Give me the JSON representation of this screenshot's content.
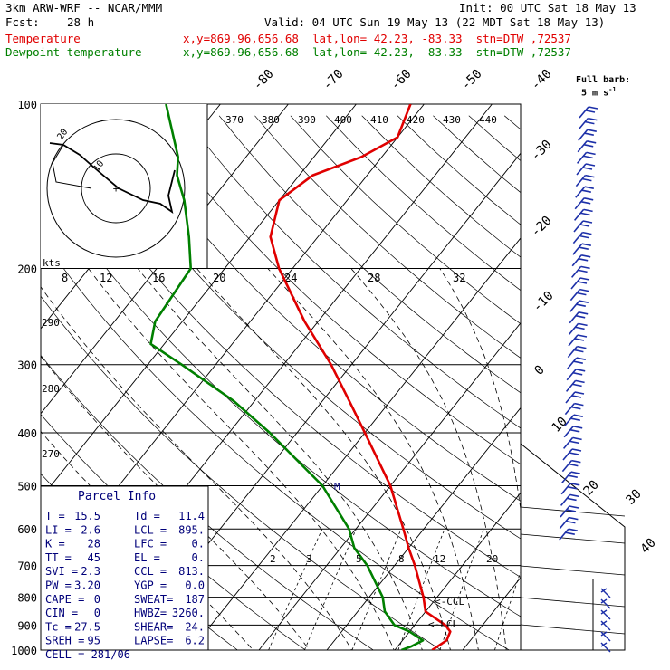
{
  "header": {
    "model": "3km ARW-WRF -- NCAR/MMM",
    "init": "Init: 00 UTC Sat 18 May 13",
    "fcst_label": "Fcst:",
    "fcst_value": "28 h",
    "valid": "Valid: 04 UTC Sun 19 May 13 (22 MDT Sat 18 May 13)",
    "temp_label": "Temperature",
    "temp_info": "x,y=869.96,656.68  lat,lon= 42.23, -83.33  stn=DTW ,72537",
    "dew_label": "Dewpoint temperature",
    "dew_info": "x,y=869.96,656.68  lat,lon= 42.23, -83.33  stn=DTW ,72537",
    "barb_title": "Full barb:",
    "barb_unit": "5 m s",
    "barb_exp": "-1"
  },
  "colors": {
    "temperature": "#e00000",
    "dewpoint": "#008000",
    "barbs": "#1c2fa8",
    "panel": "#00007a"
  },
  "chart_data": {
    "type": "line",
    "title": "",
    "xlabel": "",
    "ylabel": "",
    "pressure_levels": [
      100,
      200,
      300,
      400,
      500,
      600,
      700,
      800,
      900,
      1000
    ],
    "isotherm_labels": [
      -80,
      -70,
      -60,
      -50,
      -40,
      -30,
      -20,
      -10,
      0,
      10,
      20,
      30,
      40
    ],
    "theta_labels": [
      370,
      380,
      390,
      400,
      410,
      420,
      430,
      440
    ],
    "theta_side_labels": [
      290,
      280,
      270
    ],
    "mixing_ratio_labels": [
      2,
      3,
      5,
      8,
      12,
      20
    ],
    "hodo_speed_labels": [
      8,
      12,
      16,
      20,
      24,
      28,
      32
    ],
    "hodo_ring_labels": [
      20,
      10
    ],
    "hodo_units": "kts",
    "series": [
      {
        "name": "Temperature",
        "points": [
          [
            1000,
            15.5
          ],
          [
            980,
            16
          ],
          [
            960,
            16.5
          ],
          [
            925,
            16
          ],
          [
            900,
            14.5
          ],
          [
            850,
            10
          ],
          [
            800,
            8
          ],
          [
            700,
            3
          ],
          [
            650,
            0
          ],
          [
            600,
            -3
          ],
          [
            500,
            -10
          ],
          [
            400,
            -20
          ],
          [
            350,
            -26
          ],
          [
            300,
            -33
          ],
          [
            250,
            -42
          ],
          [
            200,
            -52
          ],
          [
            175,
            -57
          ],
          [
            150,
            -60
          ],
          [
            135,
            -58
          ],
          [
            125,
            -53
          ],
          [
            115,
            -50
          ],
          [
            100,
            -52
          ]
        ]
      },
      {
        "name": "Dewpoint temperature",
        "points": [
          [
            1000,
            11
          ],
          [
            985,
            12
          ],
          [
            960,
            13
          ],
          [
            925,
            10
          ],
          [
            900,
            7
          ],
          [
            850,
            4
          ],
          [
            800,
            2
          ],
          [
            700,
            -4
          ],
          [
            650,
            -8
          ],
          [
            600,
            -11
          ],
          [
            500,
            -20
          ],
          [
            400,
            -34
          ],
          [
            350,
            -43
          ],
          [
            300,
            -55
          ],
          [
            275,
            -62
          ],
          [
            250,
            -64
          ],
          [
            200,
            -65
          ],
          [
            175,
            -69
          ],
          [
            150,
            -74
          ],
          [
            135,
            -78
          ],
          [
            125,
            -80
          ],
          [
            100,
            -88
          ]
        ]
      }
    ],
    "parcel_info": [
      [
        "T  =",
        "15.5",
        "Td =",
        "11.4"
      ],
      [
        "LI =",
        "2.6",
        "LCL =",
        "895."
      ],
      [
        "K  =",
        "28",
        "LFC =",
        "0."
      ],
      [
        "TT =",
        "45",
        "EL  =",
        "0."
      ],
      [
        "SVI =",
        "2.3",
        "CCL =",
        "813."
      ],
      [
        "PW =",
        "3.20",
        "YGP =",
        "0.0"
      ],
      [
        "CAPE =",
        "0",
        "SWEAT=",
        "187"
      ],
      [
        "CIN =",
        "0",
        "HWBZ=",
        "3260."
      ],
      [
        "Tc =",
        "27.5",
        "SHEAR=",
        "24."
      ],
      [
        "SREH =",
        "95",
        "LAPSE=",
        "6.2"
      ],
      [
        "CELL = 281/06",
        "",
        "",
        ""
      ]
    ],
    "parcel_title": "Parcel Info",
    "annotations": [
      "<-CCL",
      "<-LCL",
      "M"
    ]
  }
}
